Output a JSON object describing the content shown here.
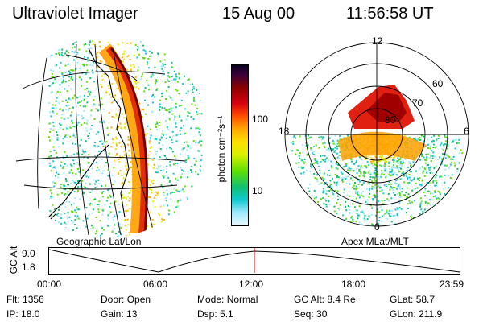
{
  "header": {
    "instrument": "Ultraviolet Imager",
    "date": "15 Aug 00",
    "time": "11:56:58 UT"
  },
  "left_panel": {
    "label": "Geographic Lat/Lon"
  },
  "right_panel": {
    "label": "Apex MLat/MLT",
    "mlt_labels": {
      "top": "12",
      "left": "18",
      "right": "6",
      "bottom": "0"
    },
    "lat_labels": [
      "60",
      "70",
      "80"
    ]
  },
  "colorbar": {
    "unit": "photon cm⁻²s⁻¹",
    "ticks": [
      "100",
      "10"
    ],
    "colors": [
      "#0a0020",
      "#3a003a",
      "#8a0000",
      "#d80010",
      "#ff5000",
      "#ffa800",
      "#ffe000",
      "#d8f000",
      "#60e000",
      "#10c070",
      "#10c8d0",
      "#a0e8ff",
      "#e8f8ff"
    ]
  },
  "altitude_plot": {
    "ylabel": "GC Alt",
    "yticks": [
      "9.0",
      "1.8"
    ],
    "xticks": [
      "00:00",
      "06:00",
      "12:00",
      "18:00",
      "23:59"
    ]
  },
  "info_table": {
    "rows": [
      [
        {
          "k": "Flt:",
          "v": "1356"
        },
        {
          "k": "Door:",
          "v": "Open"
        },
        {
          "k": "Mode:",
          "v": "Normal"
        },
        {
          "k": "GC Alt:",
          "v": "8.4 Re"
        },
        {
          "k": "GLat:",
          "v": "58.7"
        }
      ],
      [
        {
          "k": "IP:",
          "v": "18.0"
        },
        {
          "k": "Gain:",
          "v": "13"
        },
        {
          "k": "Dsp:",
          "v": "5.1"
        },
        {
          "k": "Seq:",
          "v": "30"
        },
        {
          "k": "GLon:",
          "v": "211.9"
        }
      ]
    ]
  }
}
